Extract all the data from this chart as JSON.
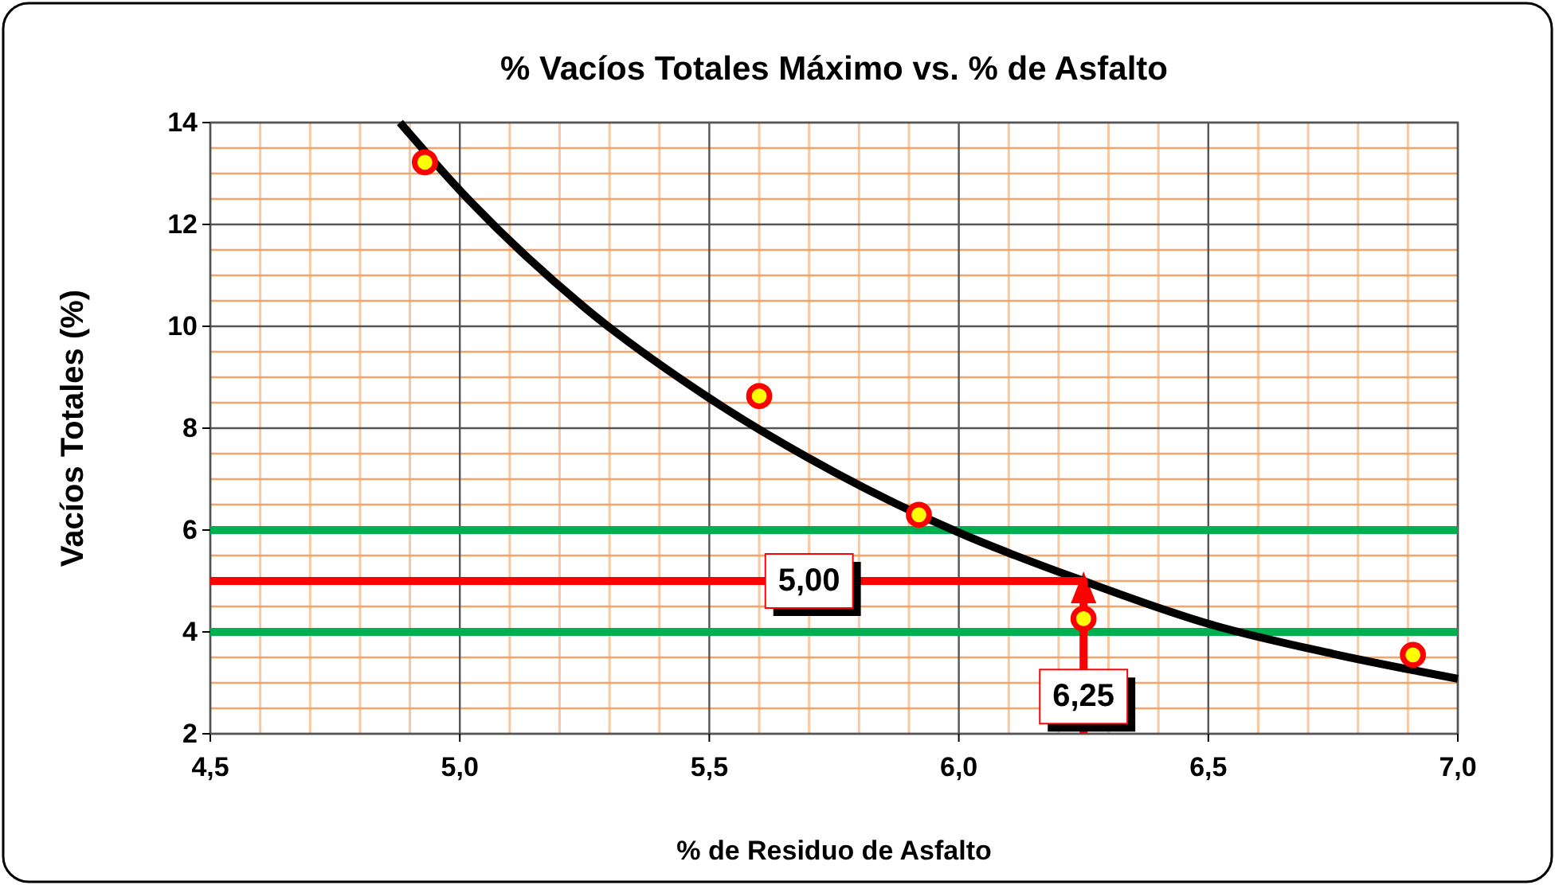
{
  "chart_data": {
    "type": "scatter",
    "title": "% Vacíos Totales Máximo vs. % de Asfalto",
    "xlabel": "% de Residuo de Asfalto",
    "ylabel": "Vacíos Totales (%)",
    "xlim": [
      4.5,
      7.0
    ],
    "ylim": [
      2,
      14
    ],
    "xticks": [
      {
        "value": 4.5,
        "label": "4,5"
      },
      {
        "value": 4.6,
        "label": null
      },
      {
        "value": 4.7,
        "label": null
      },
      {
        "value": 4.8,
        "label": null
      },
      {
        "value": 4.9,
        "label": null
      },
      {
        "value": 5.0,
        "label": "5,0"
      },
      {
        "value": 5.1,
        "label": null
      },
      {
        "value": 5.2,
        "label": null
      },
      {
        "value": 5.3,
        "label": null
      },
      {
        "value": 5.4,
        "label": null
      },
      {
        "value": 5.5,
        "label": "5,5"
      },
      {
        "value": 5.6,
        "label": null
      },
      {
        "value": 5.7,
        "label": null
      },
      {
        "value": 5.8,
        "label": null
      },
      {
        "value": 5.9,
        "label": null
      },
      {
        "value": 6.0,
        "label": "6,0"
      },
      {
        "value": 6.1,
        "label": null
      },
      {
        "value": 6.2,
        "label": null
      },
      {
        "value": 6.3,
        "label": null
      },
      {
        "value": 6.4,
        "label": null
      },
      {
        "value": 6.5,
        "label": "6,5"
      },
      {
        "value": 6.6,
        "label": null
      },
      {
        "value": 6.7,
        "label": null
      },
      {
        "value": 6.8,
        "label": null
      },
      {
        "value": 6.9,
        "label": null
      },
      {
        "value": 7.0,
        "label": "7,0"
      }
    ],
    "yticks": [
      2,
      {
        "value": 2.5,
        "label": null
      },
      {
        "value": 3,
        "label": null
      },
      {
        "value": 3.5,
        "label": null
      },
      4,
      {
        "value": 4.5,
        "label": null
      },
      {
        "value": 5,
        "label": null
      },
      {
        "value": 5.5,
        "label": null
      },
      6,
      {
        "value": 6.5,
        "label": null
      },
      {
        "value": 7,
        "label": null
      },
      {
        "value": 7.5,
        "label": null
      },
      8,
      {
        "value": 8.5,
        "label": null
      },
      {
        "value": 9,
        "label": null
      },
      {
        "value": 9.5,
        "label": null
      },
      10,
      {
        "value": 10.5,
        "label": null
      },
      {
        "value": 11,
        "label": null
      },
      {
        "value": 11.5,
        "label": null
      },
      12,
      {
        "value": 12.5,
        "label": null
      },
      {
        "value": 13,
        "label": null
      },
      {
        "value": 13.5,
        "label": null
      },
      14
    ],
    "grid": true,
    "series": [
      {
        "type": "line",
        "color": "#00b050",
        "marker": "none",
        "x": [
          4.5,
          7.0
        ],
        "values": [
          6,
          6
        ]
      },
      {
        "type": "line",
        "color": "#00b050",
        "marker": "none",
        "x": [
          4.5,
          7.0
        ],
        "values": [
          4,
          4
        ]
      },
      {
        "type": "line",
        "color": "#000000",
        "marker": "none",
        "x": [
          4.88,
          5.0,
          5.25,
          5.5,
          5.75,
          6.0,
          6.25,
          6.5,
          6.75,
          7.0
        ],
        "values": [
          14,
          12.67,
          10.37,
          8.59,
          7.14,
          5.95,
          5.0,
          4.16,
          3.57,
          3.08
        ]
      },
      {
        "type": "line",
        "color": "#ff0000",
        "marker": "none",
        "x": [
          4.5,
          6.25,
          6.25
        ],
        "values": [
          5,
          5,
          2
        ]
      },
      {
        "color": "#ffff00",
        "marker": "circle",
        "x": [
          4.93,
          5.6,
          5.92,
          6.25,
          6.91
        ],
        "values": [
          13.22,
          8.63,
          6.3,
          4.26,
          3.55
        ]
      }
    ],
    "annotations": [
      {
        "text": "5,00",
        "x": 5.7,
        "y": 5
      },
      {
        "text": "6,25",
        "x": 6.25,
        "y": 2.73
      }
    ]
  }
}
